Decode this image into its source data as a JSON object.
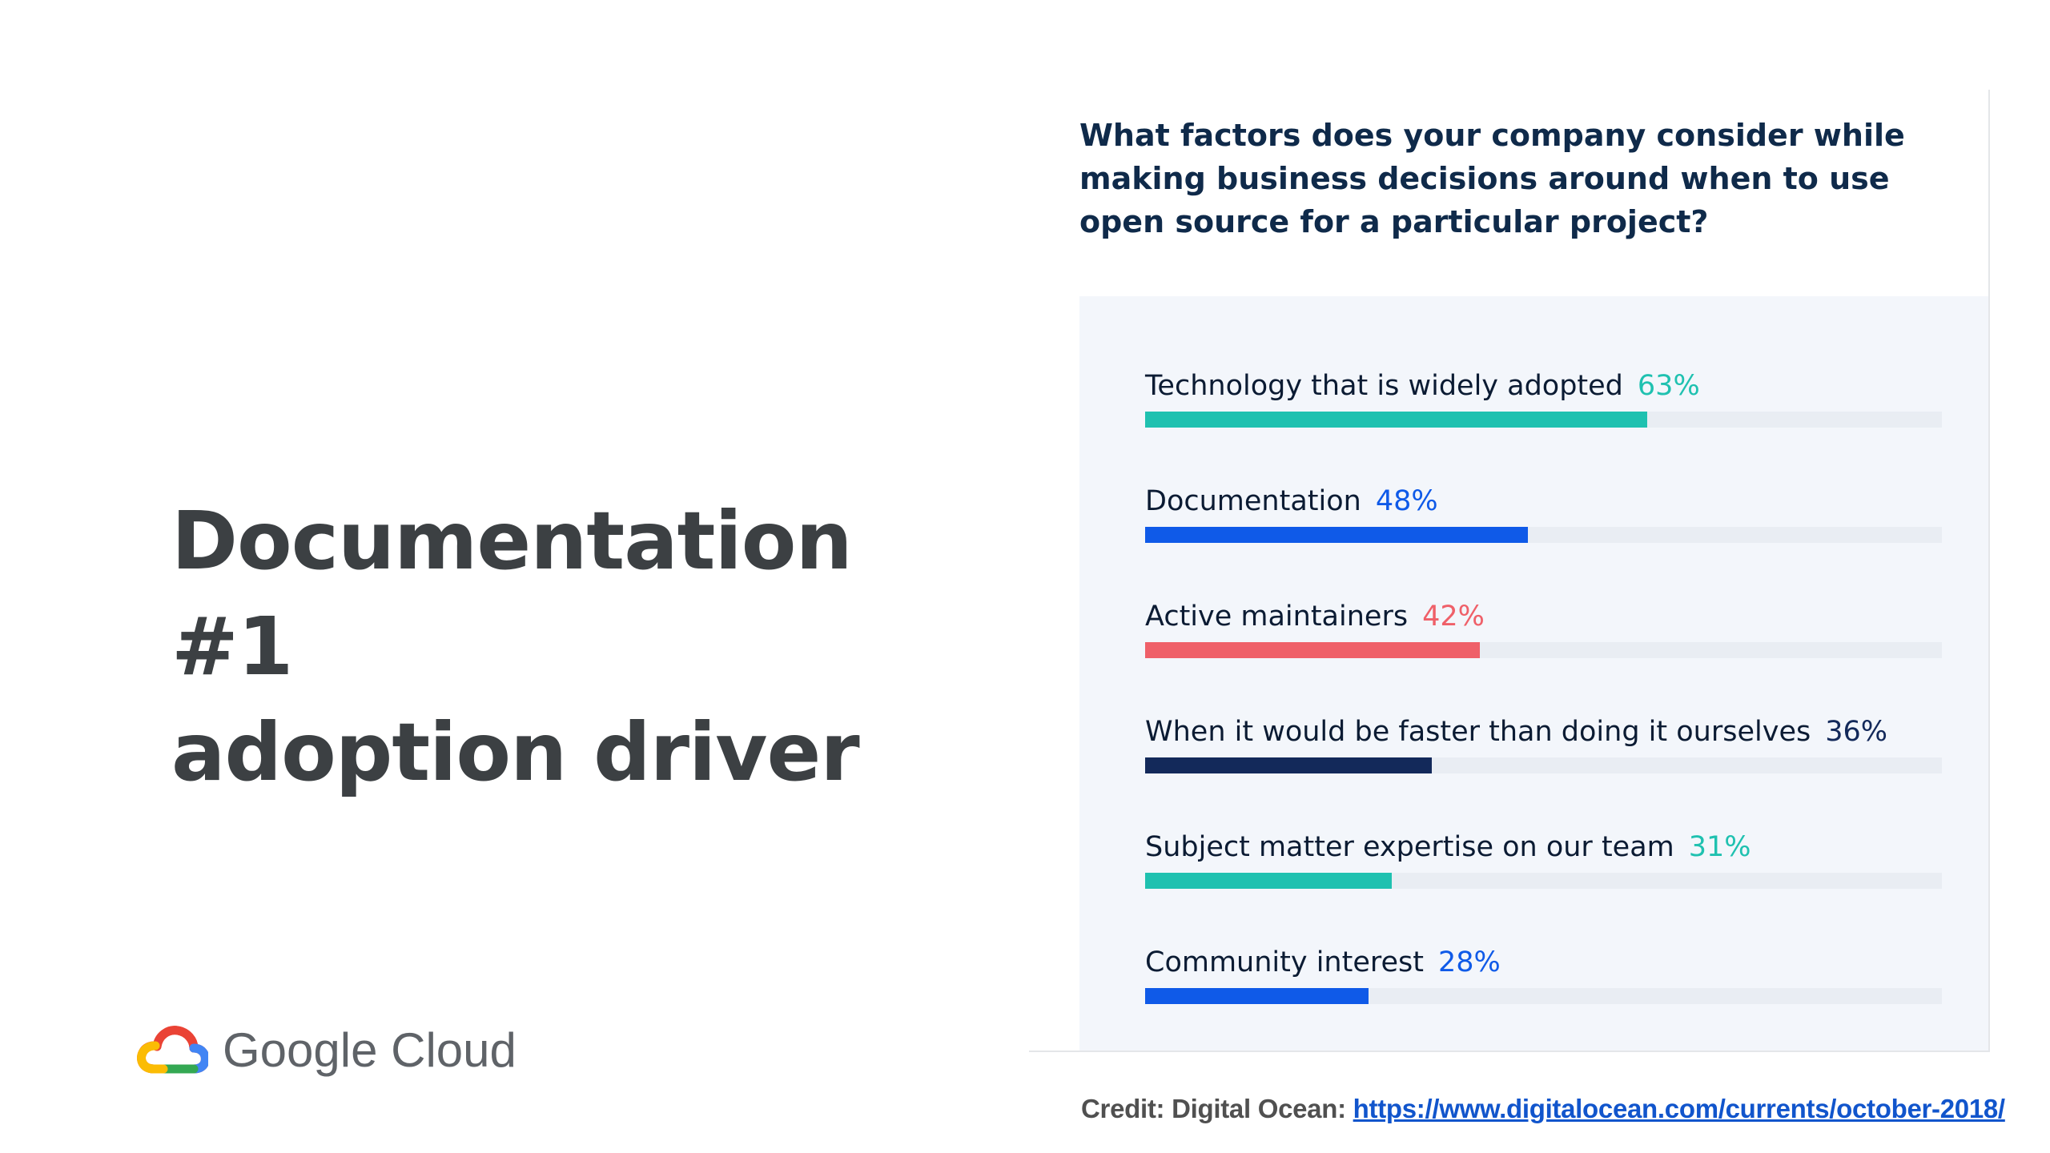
{
  "slide": {
    "title_line1": "Documentation #1",
    "title_line2": "adoption driver",
    "logo_text": "Google Cloud",
    "logo_icon": "google-cloud-icon"
  },
  "credit": {
    "prefix": "Credit: Digital Ocean:",
    "link_text": "https://www.digitalocean.com/currents/october-2018/"
  },
  "colors": {
    "teal": "#1fc1b0",
    "blue": "#0f5ae8",
    "red": "#ef6069",
    "navy": "#13295a",
    "track": "#e9edf3"
  },
  "chart_data": {
    "type": "bar",
    "orientation": "horizontal",
    "title": "What factors does your company consider while making business decisions around when to use open source for a particular project?",
    "xlim": [
      0,
      100
    ],
    "grid": false,
    "categories": [
      "Technology that is widely adopted",
      "Documentation",
      "Active maintainers",
      "When it would be faster than doing it ourselves",
      "Subject matter expertise on our team",
      "Community interest"
    ],
    "values": [
      63,
      48,
      42,
      36,
      31,
      28
    ],
    "value_labels": [
      "63%",
      "48%",
      "42%",
      "36%",
      "31%",
      "28%"
    ],
    "bar_colors": [
      "#1fc1b0",
      "#0f5ae8",
      "#ef6069",
      "#13295a",
      "#1fc1b0",
      "#0f5ae8"
    ],
    "label_colors": [
      "#1fc1b0",
      "#0f5ae8",
      "#ef6069",
      "#13295a",
      "#1fc1b0",
      "#0f5ae8"
    ]
  }
}
